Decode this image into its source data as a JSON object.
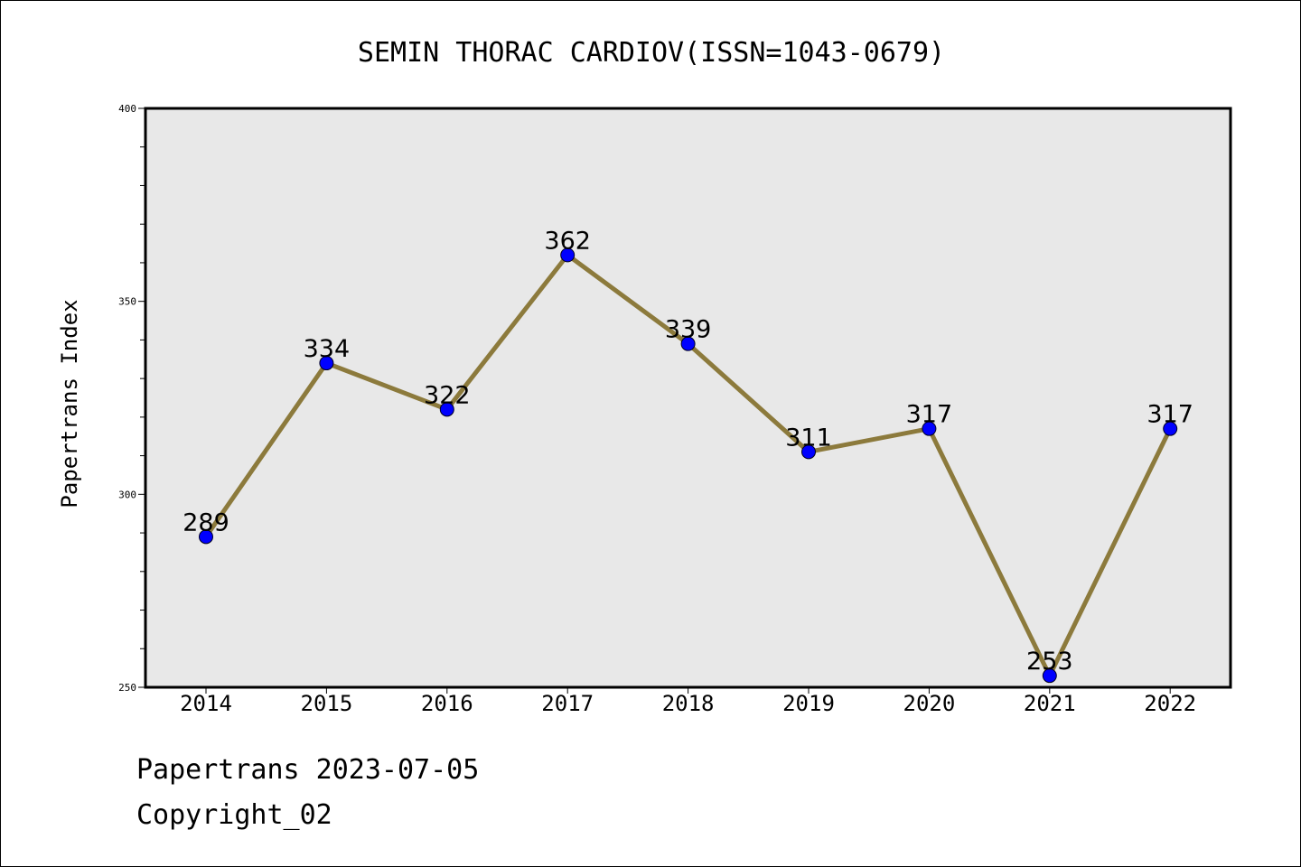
{
  "chart_data": {
    "type": "line",
    "title": "SEMIN THORAC CARDIOV(ISSN=1043-0679)",
    "xlabel": "",
    "ylabel": "Papertrans Index",
    "categories": [
      "2014",
      "2015",
      "2016",
      "2017",
      "2018",
      "2019",
      "2020",
      "2021",
      "2022"
    ],
    "values": [
      289,
      334,
      322,
      362,
      339,
      311,
      317,
      253,
      317
    ],
    "data_labels": [
      "289",
      "334",
      "322",
      "362",
      "339",
      "311",
      "317",
      "253",
      "317"
    ],
    "ylim": [
      250,
      400
    ],
    "y_ticks": [
      "250",
      "300",
      "350",
      "400"
    ],
    "y_minor_step": 10,
    "grid": false,
    "legend": "none",
    "colors": {
      "line": "#8c7a3c",
      "marker": "#0000ff",
      "plot_background": "#e8e8e8"
    }
  },
  "footer": {
    "source": "Papertrans 2023-07-05",
    "copyright": "Copyright_02"
  }
}
